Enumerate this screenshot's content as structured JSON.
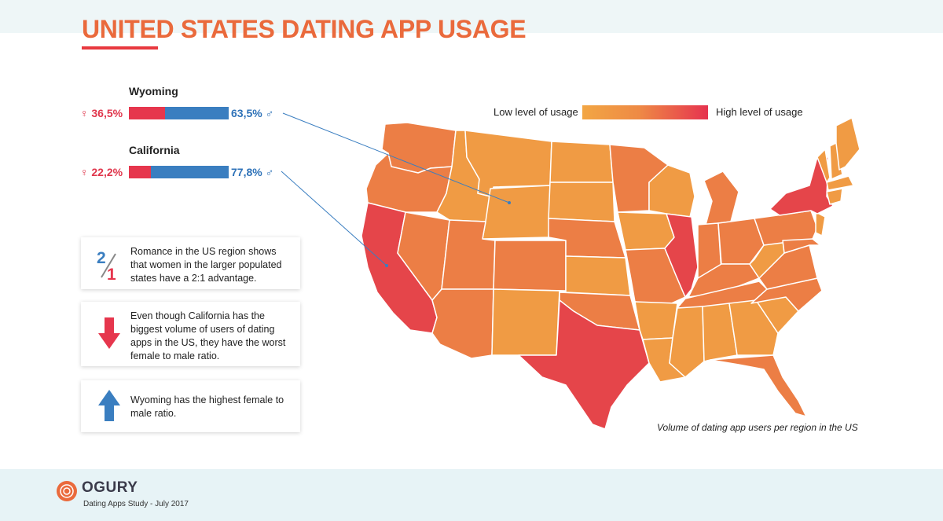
{
  "title": "UNITED STATES DATING APP USAGE",
  "states": [
    {
      "name": "Wyoming",
      "female": "36,5%",
      "male": "63,5%",
      "female_share": 0.365
    },
    {
      "name": "California",
      "female": "22,2%",
      "male": "77,8%",
      "female_share": 0.222
    }
  ],
  "info": [
    {
      "icon": "two-to-one-icon",
      "text": "Romance in the US region shows that women in the larger populated states have a 2:1 advantage."
    },
    {
      "icon": "arrow-down-icon",
      "text": "Even though California has the biggest volume of users of dating apps in the US, they have the worst female to male ratio."
    },
    {
      "icon": "arrow-up-icon",
      "text": "Wyoming has the highest female to male ratio."
    }
  ],
  "icon_text": {
    "two": "2",
    "one": "1"
  },
  "legend": {
    "low": "Low level of usage",
    "high": "High level of usage"
  },
  "caption": "Volume of dating app users per region in the US",
  "footer": {
    "brand": "OGURY",
    "study": "Dating Apps Study - July 2017"
  },
  "colors": {
    "female": "#e6364d",
    "male": "#3a7ec0",
    "low_usage": "#f2a644",
    "mid_usage": "#ee8a45",
    "high_usage": "#e6334f",
    "title": "#ea6a3c"
  }
}
